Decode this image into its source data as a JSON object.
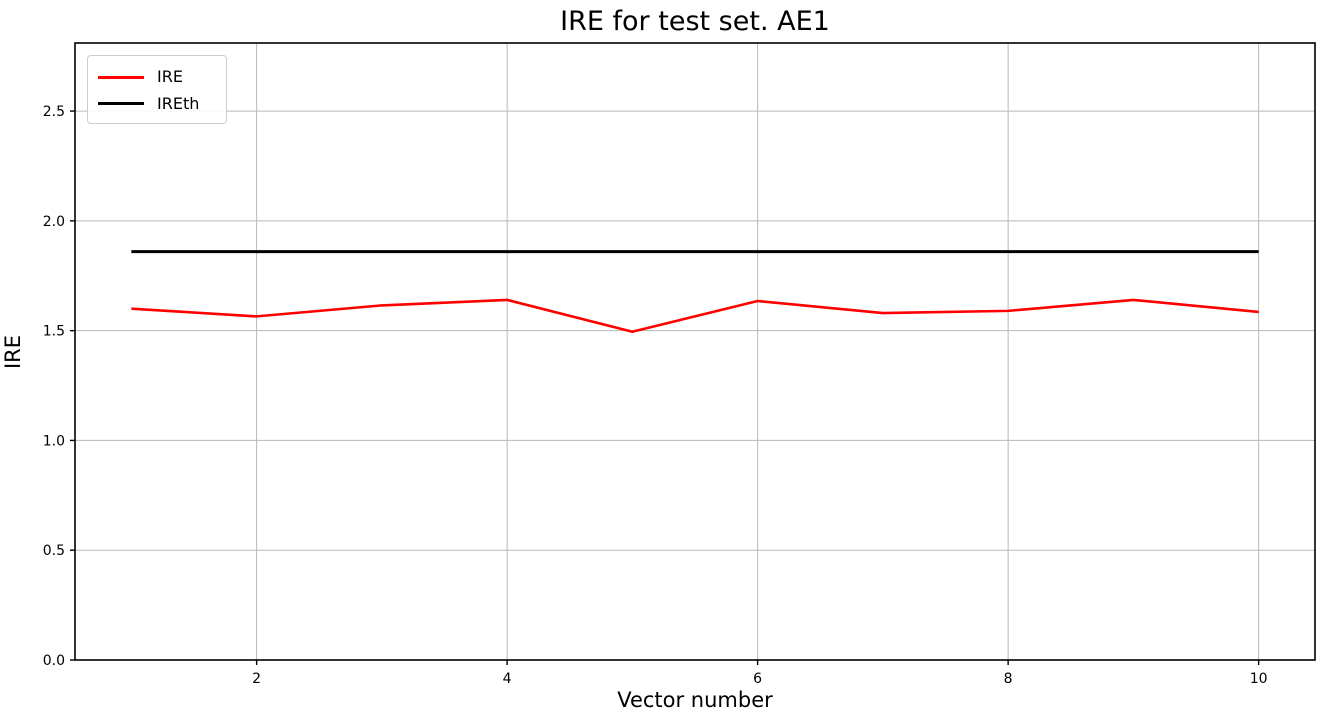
{
  "figure": {
    "background": "#ffffff",
    "title": "IRE for test set. AE1"
  },
  "legend": {
    "position": "upper left",
    "items": [
      {
        "label": "IRE",
        "color": "#ff0000"
      },
      {
        "label": "IREth",
        "color": "#000000"
      }
    ]
  },
  "chart_data": {
    "type": "line",
    "title": "IRE for test set. AE1",
    "xlabel": "Vector number",
    "ylabel": "IRE",
    "x": [
      1,
      2,
      3,
      4,
      5,
      6,
      7,
      8,
      9,
      10
    ],
    "series": [
      {
        "name": "IRE",
        "color": "#ff0000",
        "linewidth": 2.6,
        "values": [
          1.6,
          1.565,
          1.615,
          1.64,
          1.495,
          1.635,
          1.58,
          1.59,
          1.64,
          1.585
        ]
      },
      {
        "name": "IREth",
        "color": "#000000",
        "linewidth": 3.0,
        "values": [
          1.86,
          1.86,
          1.86,
          1.86,
          1.86,
          1.86,
          1.86,
          1.86,
          1.86,
          1.86
        ]
      }
    ],
    "xlim": [
      0.55,
      10.45
    ],
    "ylim": [
      0.0,
      2.81
    ],
    "xticks": [
      2,
      4,
      6,
      8,
      10
    ],
    "yticks": [
      0.0,
      0.5,
      1.0,
      1.5,
      2.0,
      2.5
    ],
    "grid": true,
    "grid_color": "#b8b8b8",
    "legend_position": "upper left"
  }
}
